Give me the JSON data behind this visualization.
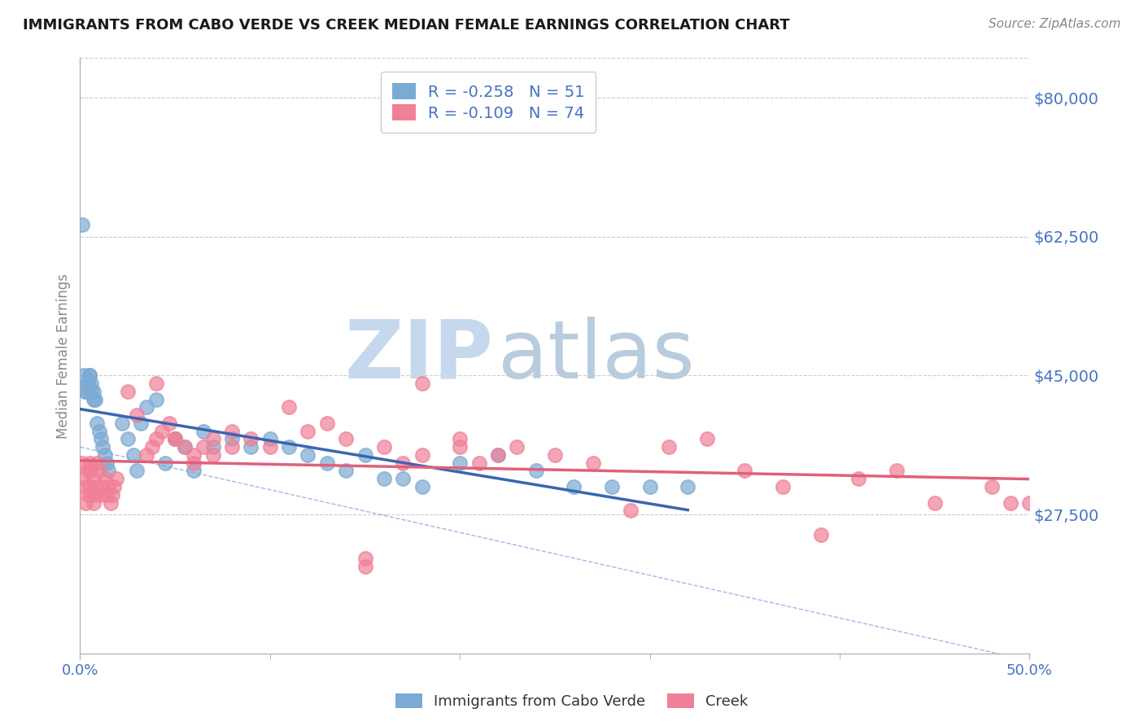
{
  "title": "IMMIGRANTS FROM CABO VERDE VS CREEK MEDIAN FEMALE EARNINGS CORRELATION CHART",
  "source": "Source: ZipAtlas.com",
  "ylabel": "Median Female Earnings",
  "xlim": [
    0.0,
    0.5
  ],
  "ylim": [
    10000,
    85000
  ],
  "yticks": [
    27500,
    45000,
    62500,
    80000
  ],
  "ytick_labels": [
    "$27,500",
    "$45,000",
    "$62,500",
    "$80,000"
  ],
  "xtick_positions": [
    0.0,
    0.5
  ],
  "xtick_labels": [
    "0.0%",
    "50.0%"
  ],
  "cabo_verde_R": -0.258,
  "cabo_verde_N": 51,
  "creek_R": -0.109,
  "creek_N": 74,
  "cabo_verde_color": "#7baad4",
  "creek_color": "#f08098",
  "cabo_verde_line_color": "#3a65b0",
  "creek_line_color": "#e0607a",
  "cabo_verde_scatter_x": [
    0.001,
    0.002,
    0.003,
    0.004,
    0.005,
    0.006,
    0.007,
    0.008,
    0.009,
    0.01,
    0.011,
    0.012,
    0.013,
    0.014,
    0.015,
    0.004,
    0.006,
    0.005,
    0.007,
    0.003,
    0.022,
    0.025,
    0.028,
    0.03,
    0.032,
    0.035,
    0.04,
    0.045,
    0.05,
    0.055,
    0.06,
    0.065,
    0.07,
    0.08,
    0.09,
    0.1,
    0.11,
    0.12,
    0.13,
    0.14,
    0.15,
    0.16,
    0.17,
    0.18,
    0.2,
    0.22,
    0.24,
    0.26,
    0.28,
    0.3,
    0.32
  ],
  "cabo_verde_scatter_y": [
    64000,
    45000,
    43000,
    44000,
    45000,
    44000,
    43000,
    42000,
    39000,
    38000,
    37000,
    36000,
    35000,
    34000,
    33000,
    44000,
    43000,
    45000,
    42000,
    43000,
    39000,
    37000,
    35000,
    33000,
    39000,
    41000,
    42000,
    34000,
    37000,
    36000,
    33000,
    38000,
    36000,
    37000,
    36000,
    37000,
    36000,
    35000,
    34000,
    33000,
    35000,
    32000,
    32000,
    31000,
    34000,
    35000,
    33000,
    31000,
    31000,
    31000,
    31000
  ],
  "creek_scatter_x": [
    0.001,
    0.002,
    0.003,
    0.004,
    0.005,
    0.006,
    0.007,
    0.008,
    0.009,
    0.01,
    0.011,
    0.012,
    0.013,
    0.014,
    0.015,
    0.016,
    0.017,
    0.018,
    0.019,
    0.003,
    0.004,
    0.005,
    0.006,
    0.007,
    0.008,
    0.035,
    0.038,
    0.04,
    0.043,
    0.047,
    0.05,
    0.055,
    0.06,
    0.065,
    0.07,
    0.08,
    0.09,
    0.1,
    0.11,
    0.12,
    0.13,
    0.14,
    0.15,
    0.16,
    0.17,
    0.18,
    0.2,
    0.21,
    0.22,
    0.23,
    0.25,
    0.27,
    0.29,
    0.31,
    0.33,
    0.35,
    0.37,
    0.39,
    0.41,
    0.43,
    0.45,
    0.48,
    0.49,
    0.5,
    0.18,
    0.2,
    0.025,
    0.03,
    0.04,
    0.05,
    0.06,
    0.07,
    0.08,
    0.15
  ],
  "creek_scatter_y": [
    34000,
    32000,
    31000,
    33000,
    34000,
    33000,
    32000,
    31000,
    34000,
    33000,
    30000,
    31000,
    32000,
    30000,
    31000,
    29000,
    30000,
    31000,
    32000,
    29000,
    30000,
    31000,
    30000,
    29000,
    30000,
    35000,
    36000,
    37000,
    38000,
    39000,
    37000,
    36000,
    35000,
    36000,
    37000,
    38000,
    37000,
    36000,
    41000,
    38000,
    39000,
    37000,
    21000,
    36000,
    34000,
    35000,
    37000,
    34000,
    35000,
    36000,
    35000,
    34000,
    28000,
    36000,
    37000,
    33000,
    31000,
    25000,
    32000,
    33000,
    29000,
    31000,
    29000,
    29000,
    44000,
    36000,
    43000,
    40000,
    44000,
    37000,
    34000,
    35000,
    36000,
    22000
  ],
  "watermark_zip": "ZIP",
  "watermark_atlas": "atlas",
  "watermark_color_zip": "#c5d8ee",
  "watermark_color_atlas": "#b8ccdd",
  "background_color": "#ffffff",
  "grid_color": "#cccccc",
  "tick_color": "#aaaaaa",
  "label_color_blue": "#4472c4",
  "axis_label_color": "#888888"
}
